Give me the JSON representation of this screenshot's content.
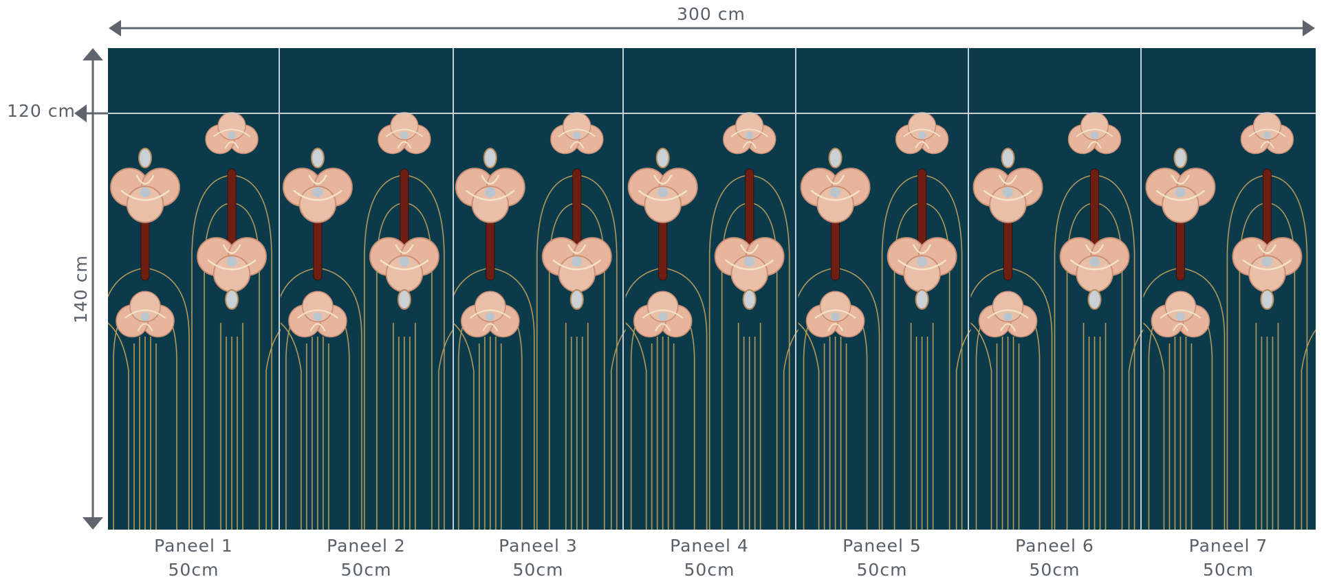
{
  "dimensions": {
    "width": "300 cm",
    "top_band": "120 cm",
    "height": "140 cm"
  },
  "panels": [
    {
      "name": "Paneel 1",
      "width": "50cm"
    },
    {
      "name": "Paneel 2",
      "width": "50cm"
    },
    {
      "name": "Paneel 3",
      "width": "50cm"
    },
    {
      "name": "Paneel 4",
      "width": "50cm"
    },
    {
      "name": "Paneel 5",
      "width": "50cm"
    },
    {
      "name": "Paneel 6",
      "width": "50cm"
    },
    {
      "name": "Paneel 7",
      "width": "50cm"
    }
  ]
}
